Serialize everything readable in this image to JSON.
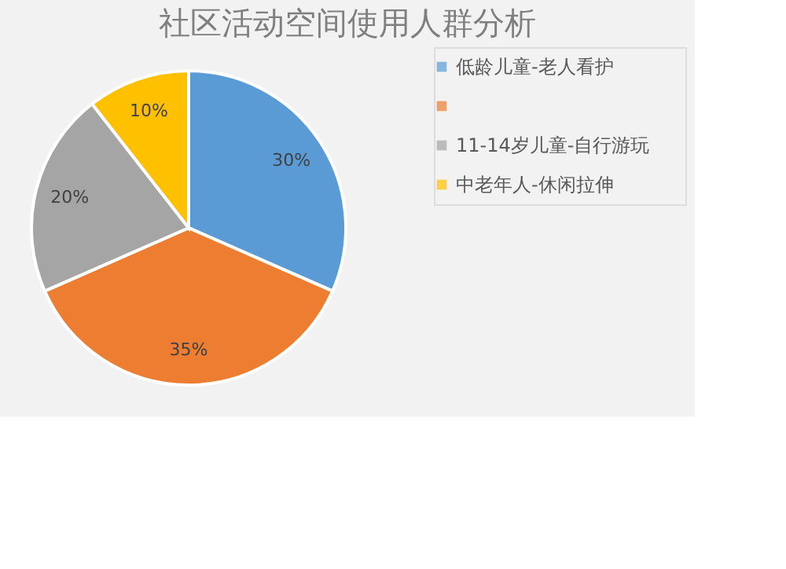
{
  "chart_data": {
    "type": "pie",
    "title": "社区活动空间使用人群分析",
    "categories": [
      "低龄儿童-老人看护",
      null,
      "11-14岁儿童-自行游玩",
      "中老年人-休闲拉伸"
    ],
    "values": [
      30,
      35,
      20,
      10
    ],
    "value_labels": [
      "30%",
      "35%",
      "20%",
      "10%"
    ],
    "colors": [
      "#5b9bd5",
      "#ed7d31",
      "#a5a5a5",
      "#ffc000"
    ],
    "legend": "right"
  }
}
